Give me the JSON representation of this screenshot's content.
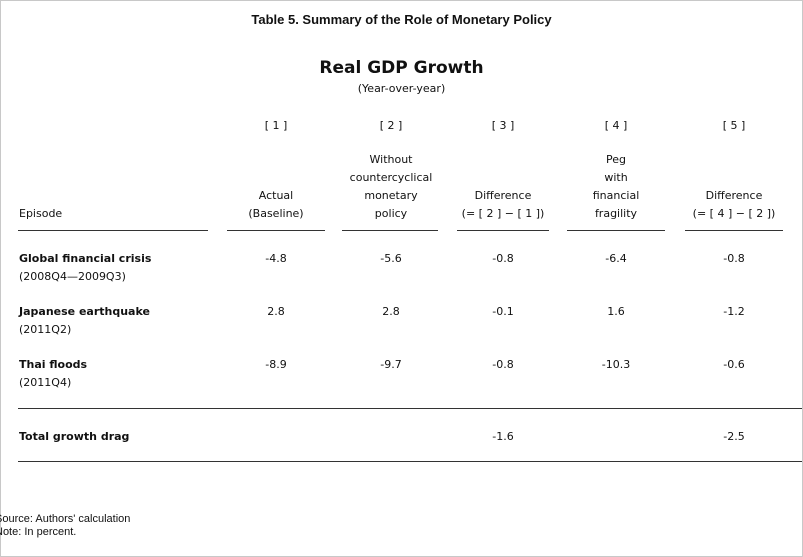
{
  "title": "Table 5. Summary of the Role of Monetary Policy",
  "subtitle": "Real GDP Growth",
  "subtitle_note": "(Year-over-year)",
  "column_numbers": [
    "[ 1 ]",
    "[ 2 ]",
    "[ 3 ]",
    "[ 4 ]",
    "[ 5 ]"
  ],
  "headers": {
    "episode": "Episode",
    "col1": [
      "Actual",
      "(Baseline)"
    ],
    "col2": [
      "Without",
      "countercyclical",
      "monetary",
      "policy"
    ],
    "col3": [
      "Difference",
      "(= [ 2 ] − [ 1 ])"
    ],
    "col4": [
      "Peg",
      "with",
      "financial",
      "fragility"
    ],
    "col5": [
      "Difference",
      "(= [ 4 ] − [ 2 ])"
    ]
  },
  "rows": [
    {
      "episode": "Global financial crisis",
      "period": "(2008Q4—2009Q3)",
      "values": [
        "-4.8",
        "-5.6",
        "-0.8",
        "-6.4",
        "-0.8"
      ]
    },
    {
      "episode": "Japanese earthquake",
      "period": "(2011Q2)",
      "values": [
        "2.8",
        "2.8",
        "-0.1",
        "1.6",
        "-1.2"
      ]
    },
    {
      "episode": "Thai floods",
      "period": "(2011Q4)",
      "values": [
        "-8.9",
        "-9.7",
        "-0.8",
        "-10.3",
        "-0.6"
      ]
    }
  ],
  "total": {
    "label": "Total growth drag",
    "col3": "-1.6",
    "col5": "-2.5"
  },
  "footnotes": [
    "Source: Authors' calculation",
    "Note: In percent."
  ]
}
